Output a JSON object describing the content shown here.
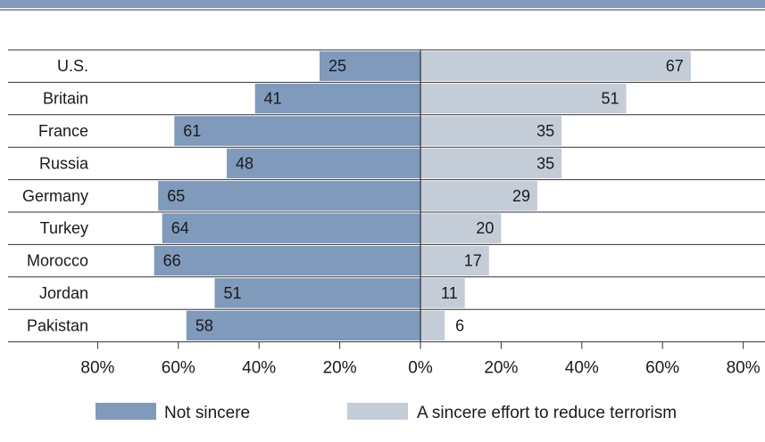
{
  "colors": {
    "not_sincere": "#7f9abb",
    "sincere": "#c4ccd8",
    "grid": "#333333",
    "top_band": "#7f9abb"
  },
  "chart_data": {
    "type": "bar",
    "orientation": "horizontal-diverging",
    "categories": [
      "U.S.",
      "Britain",
      "France",
      "Russia",
      "Germany",
      "Turkey",
      "Morocco",
      "Jordan",
      "Pakistan"
    ],
    "series": [
      {
        "name": "Not sincere",
        "direction": "left",
        "values": [
          25,
          41,
          61,
          48,
          65,
          64,
          66,
          51,
          58
        ]
      },
      {
        "name": "A sincere effort to reduce terrorism",
        "direction": "right",
        "values": [
          67,
          51,
          35,
          35,
          29,
          20,
          17,
          11,
          6
        ]
      }
    ],
    "xlim": [
      -80,
      80
    ],
    "x_ticks": [
      -80,
      -60,
      -40,
      -20,
      0,
      20,
      40,
      60,
      80
    ],
    "x_tick_labels": [
      "80%",
      "60%",
      "40%",
      "20%",
      "0%",
      "20%",
      "40%",
      "60%",
      "80%"
    ],
    "legend_position": "bottom",
    "grid": "horizontal row separators"
  }
}
